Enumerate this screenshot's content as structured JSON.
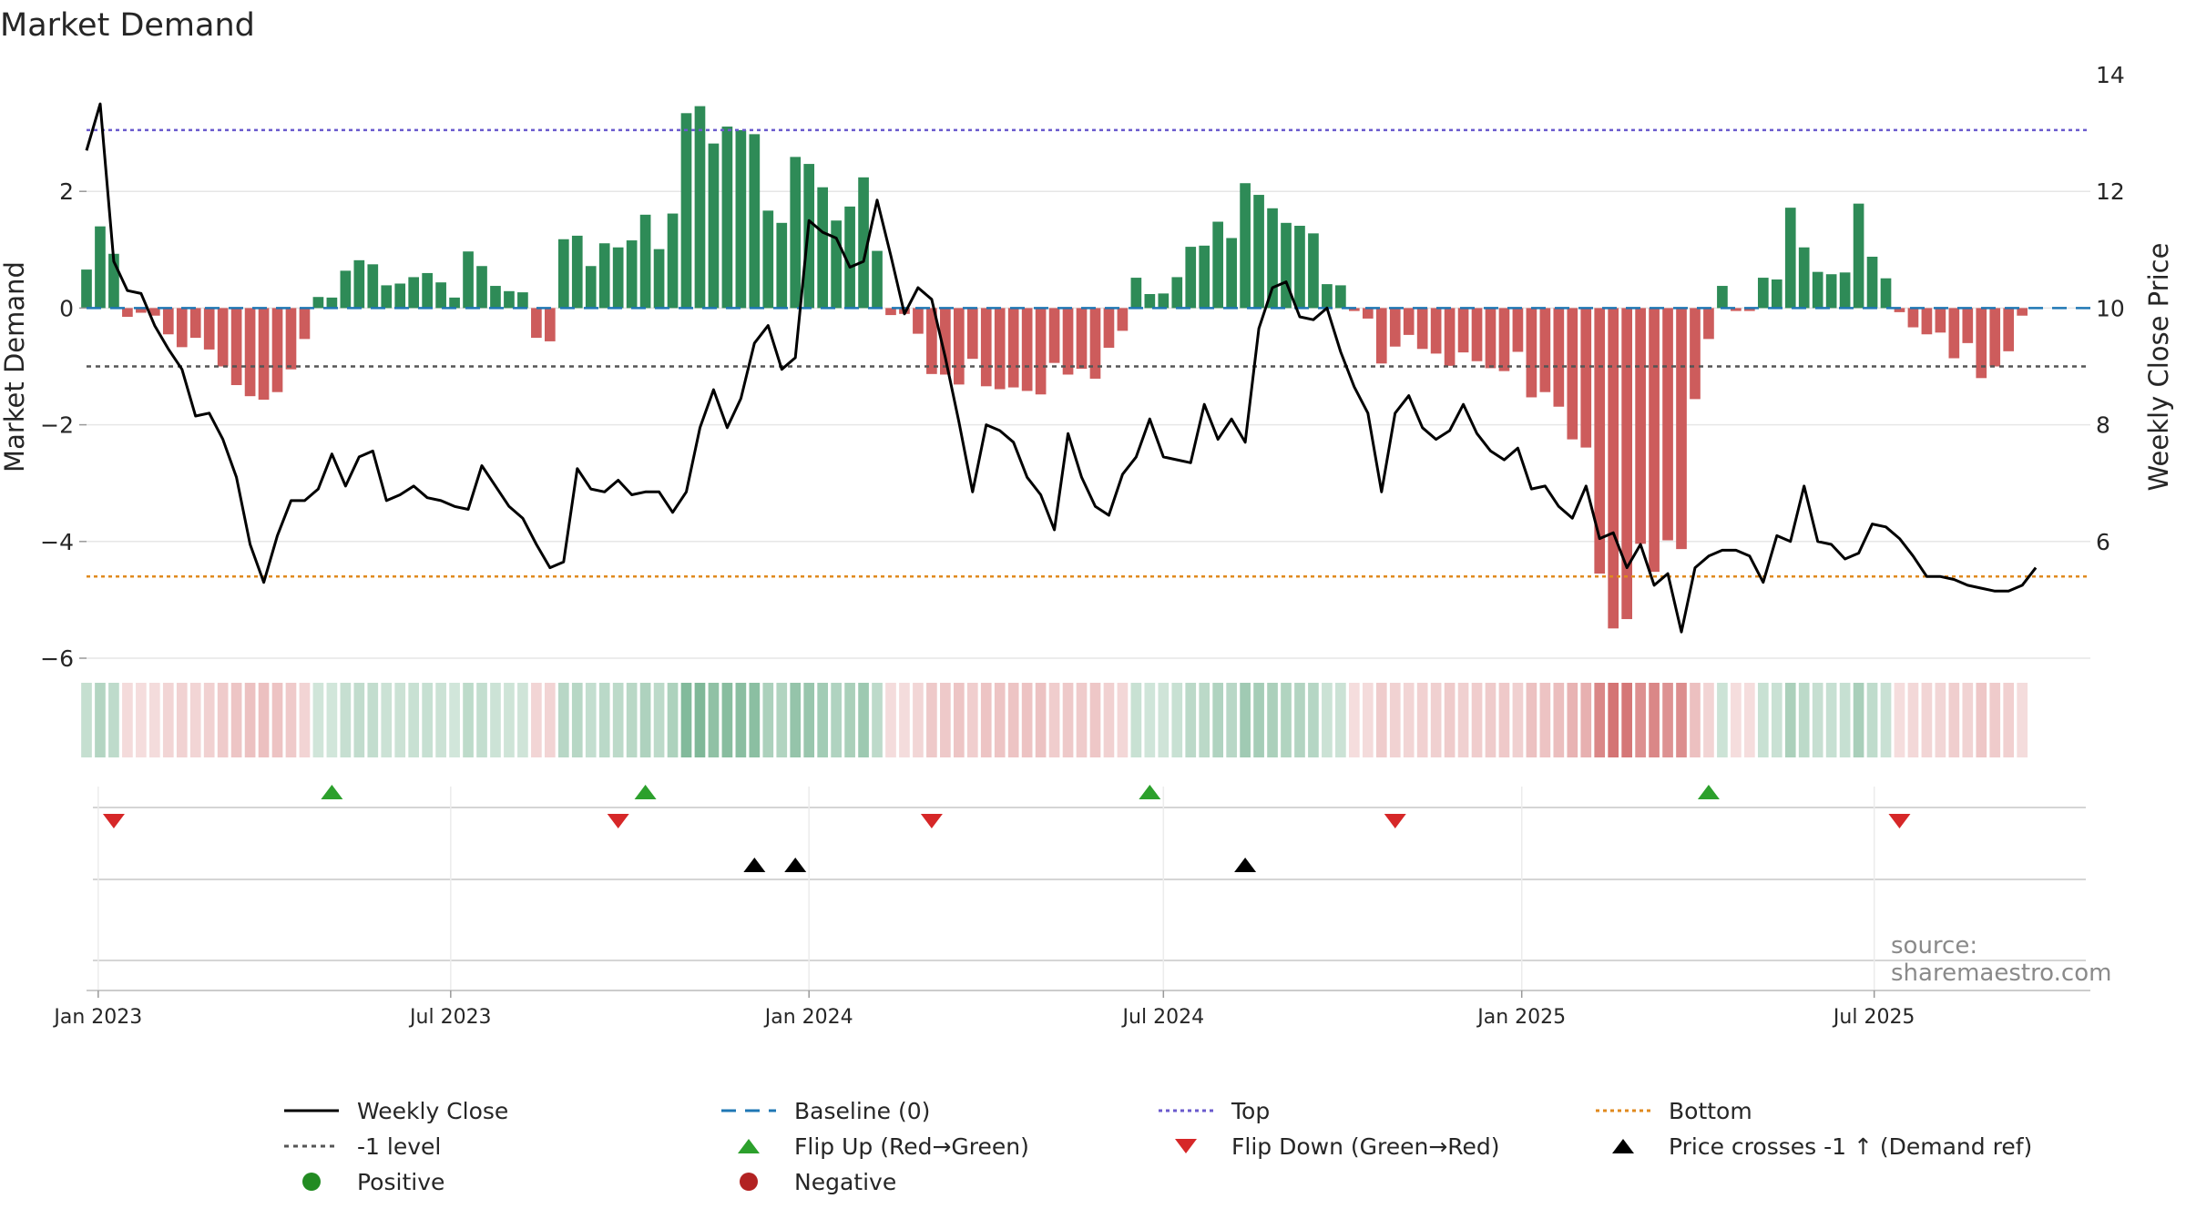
{
  "chart_data": {
    "type": "bar",
    "title": "Market Demand",
    "ylabel": "Market Demand",
    "ylabel_right": "Weekly Close Price",
    "source": "source: sharemaestro.com",
    "ylim": [
      -6,
      4
    ],
    "yticks": [
      2,
      0,
      -2,
      -4,
      -6
    ],
    "ytick_labels": [
      "2",
      "0",
      "−2",
      "−4",
      "−6"
    ],
    "ylim_right": [
      4,
      14
    ],
    "yticks_right": [
      14,
      12,
      10,
      8,
      6
    ],
    "xlim": [
      "2022-12-26",
      "2025-10-20"
    ],
    "xticks": [
      "2023-01-01",
      "2023-07-01",
      "2024-01-01",
      "2024-07-01",
      "2025-01-01",
      "2025-07-01"
    ],
    "xtick_labels": [
      "Jan 2023",
      "Jul 2023",
      "Jan 2024",
      "Jul 2024",
      "Jan 2025",
      "Jul 2025"
    ],
    "start_week": "2022-12-26",
    "demand": [
      0.66,
      1.4,
      0.93,
      -0.15,
      -0.08,
      -0.13,
      -0.45,
      -0.67,
      -0.51,
      -0.71,
      -1.0,
      -1.32,
      -1.51,
      -1.57,
      -1.44,
      -1.05,
      -0.53,
      0.19,
      0.18,
      0.64,
      0.82,
      0.75,
      0.39,
      0.42,
      0.53,
      0.6,
      0.44,
      0.18,
      0.97,
      0.72,
      0.38,
      0.29,
      0.27,
      -0.51,
      -0.57,
      1.18,
      1.24,
      0.72,
      1.11,
      1.04,
      1.16,
      1.6,
      1.01,
      1.62,
      3.34,
      3.46,
      2.82,
      3.11,
      3.05,
      2.98,
      1.67,
      1.46,
      2.59,
      2.47,
      2.07,
      1.5,
      1.74,
      2.24,
      0.98,
      -0.12,
      -0.1,
      -0.44,
      -1.13,
      -1.14,
      -1.31,
      -0.87,
      -1.34,
      -1.39,
      -1.36,
      -1.42,
      -1.48,
      -0.94,
      -1.14,
      -1.04,
      -1.21,
      -0.68,
      -0.39,
      0.52,
      0.24,
      0.25,
      0.53,
      1.05,
      1.07,
      1.48,
      1.2,
      2.14,
      1.94,
      1.71,
      1.46,
      1.41,
      1.28,
      0.41,
      0.39,
      -0.05,
      -0.18,
      -0.95,
      -0.66,
      -0.46,
      -0.7,
      -0.78,
      -0.99,
      -0.76,
      -0.91,
      -1.03,
      -1.08,
      -0.75,
      -1.53,
      -1.44,
      -1.69,
      -2.25,
      -2.39,
      -4.55,
      -5.49,
      -5.33,
      -4.04,
      -4.52,
      -3.98,
      -4.13,
      -1.56,
      -0.53,
      0.38,
      -0.05,
      -0.05,
      0.52,
      0.49,
      1.72,
      1.04,
      0.62,
      0.58,
      0.61,
      1.79,
      0.88,
      0.51,
      -0.07,
      -0.33,
      -0.45,
      -0.42,
      -0.86,
      -0.6,
      -1.2,
      -1.0,
      -0.74,
      -0.13
    ],
    "close": [
      12.7,
      13.5,
      10.8,
      10.3,
      10.25,
      9.7,
      9.3,
      8.95,
      8.15,
      8.2,
      7.75,
      7.1,
      5.95,
      5.3,
      6.1,
      6.7,
      6.7,
      6.9,
      7.5,
      6.95,
      7.45,
      7.55,
      6.7,
      6.8,
      6.95,
      6.75,
      6.7,
      6.6,
      6.55,
      7.3,
      6.95,
      6.6,
      6.4,
      5.95,
      5.55,
      5.65,
      7.25,
      6.9,
      6.85,
      7.05,
      6.8,
      6.85,
      6.85,
      6.5,
      6.85,
      7.95,
      8.6,
      7.95,
      8.45,
      9.4,
      9.7,
      8.95,
      9.15,
      11.5,
      11.3,
      11.2,
      10.7,
      10.8,
      11.85,
      10.9,
      9.9,
      10.35,
      10.15,
      9.15,
      8.05,
      6.85,
      8.0,
      7.9,
      7.7,
      7.1,
      6.8,
      6.2,
      7.85,
      7.1,
      6.6,
      6.45,
      7.15,
      7.45,
      8.1,
      7.45,
      7.4,
      7.35,
      8.35,
      7.75,
      8.1,
      7.7,
      9.65,
      10.35,
      10.45,
      9.85,
      9.8,
      10.0,
      9.25,
      8.65,
      8.2,
      6.85,
      8.2,
      8.5,
      7.95,
      7.75,
      7.9,
      8.35,
      7.85,
      7.55,
      7.4,
      7.6,
      6.9,
      6.95,
      6.6,
      6.4,
      6.95,
      6.05,
      6.15,
      5.55,
      5.95,
      5.25,
      5.45,
      4.45,
      5.55,
      5.75,
      5.85,
      5.85,
      5.75,
      5.3,
      6.1,
      6.0,
      6.95,
      6.0,
      5.95,
      5.7,
      5.8,
      6.3,
      6.25,
      6.05,
      5.75,
      5.4,
      5.4,
      5.35,
      5.25,
      5.2,
      5.15,
      5.15,
      5.25,
      5.55
    ],
    "top_level": 3.05,
    "bottom_level": -4.6,
    "minus1_level": -1,
    "baseline": 0,
    "flip_up_dates": [
      "2023-05-01",
      "2023-10-09",
      "2024-06-24",
      "2025-04-07"
    ],
    "flip_down_dates": [
      "2023-01-09",
      "2023-09-25",
      "2024-03-04",
      "2024-10-28",
      "2025-07-14"
    ],
    "cross_up_dates": [
      "2023-12-04",
      "2023-12-25",
      "2024-08-12"
    ],
    "legend_placement": "bottom",
    "legend": [
      {
        "key": "weekly_close",
        "label": "Weekly Close"
      },
      {
        "key": "baseline",
        "label": "Baseline (0)"
      },
      {
        "key": "top",
        "label": "Top"
      },
      {
        "key": "bottom",
        "label": "Bottom"
      },
      {
        "key": "minus1",
        "label": "-1 level"
      },
      {
        "key": "flip_up",
        "label": "Flip Up (Red→Green)"
      },
      {
        "key": "flip_down",
        "label": "Flip Down (Green→Red)"
      },
      {
        "key": "cross_up",
        "label": "Price crosses -1 ↑ (Demand ref)"
      },
      {
        "key": "positive",
        "label": "Positive"
      },
      {
        "key": "negative",
        "label": "Negative"
      }
    ],
    "colors": {
      "positive_bar": "#2e8b57",
      "negative_bar": "#cd5c5c",
      "close_line": "#000000",
      "baseline": "#1f77b4",
      "top": "#6a5acd",
      "bottom": "#e08a1e",
      "minus1": "#555555",
      "flip_up": "#2ca02c",
      "flip_down": "#d62728",
      "cross_up": "#000000",
      "positive_dot": "#228b22",
      "negative_dot": "#b22222",
      "grid": "#e6e6e6"
    }
  }
}
